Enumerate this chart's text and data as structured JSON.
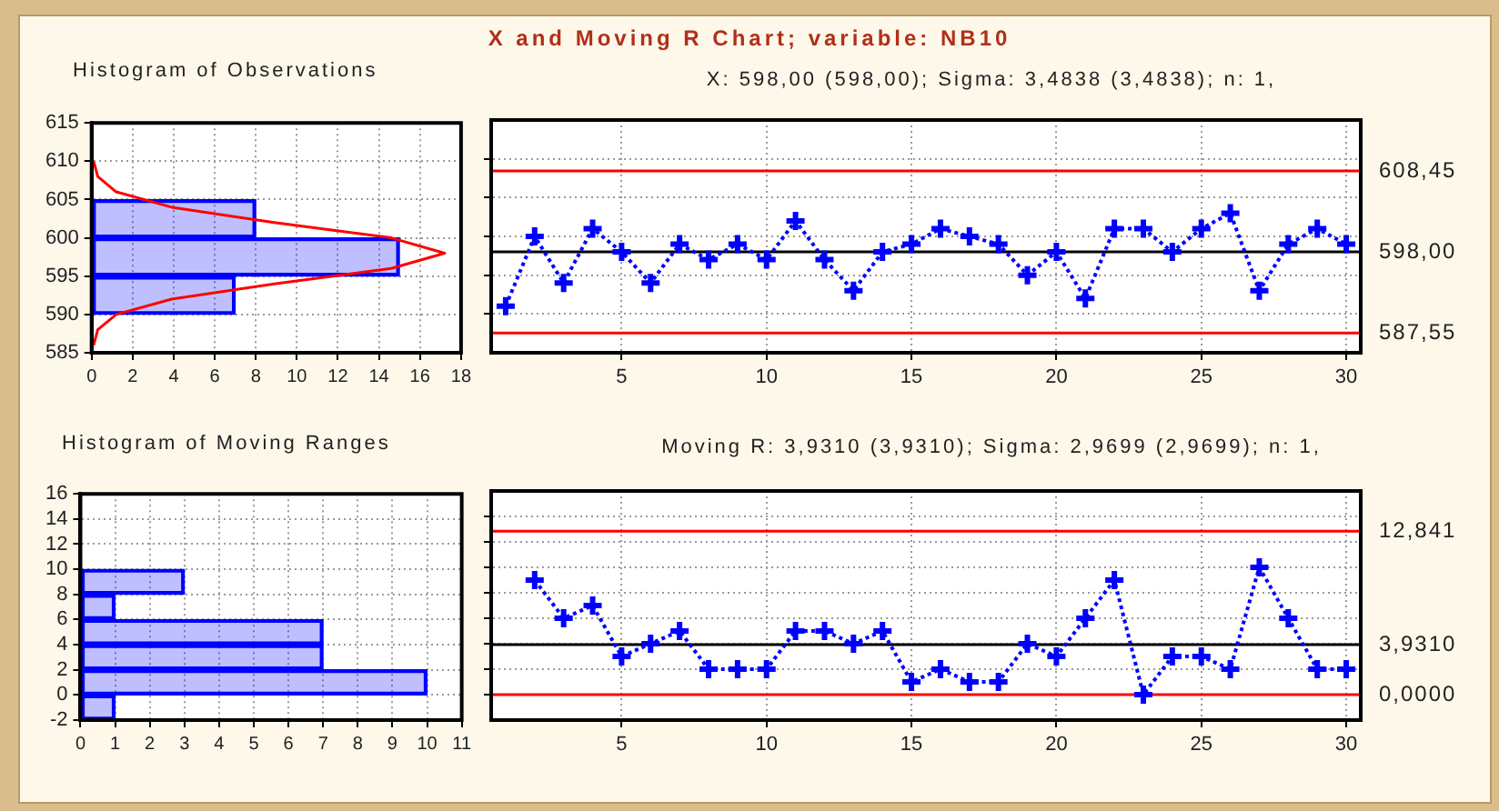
{
  "chart_data": [
    {
      "type": "bar",
      "title": "Histogram of Observations",
      "orientation": "horizontal",
      "x": [
        592.5,
        597.5,
        602.5
      ],
      "values": [
        7,
        15,
        8
      ],
      "color": "#0000ff",
      "series": [
        {
          "type": "line",
          "color": "#ff0000",
          "x": [
            586,
            588,
            590,
            592,
            594,
            596,
            598,
            600,
            602,
            604,
            606,
            608,
            610
          ],
          "values": [
            0.1,
            0.3,
            1.2,
            3.9,
            8.9,
            14.6,
            17.2,
            14.6,
            8.9,
            3.9,
            1.2,
            0.3,
            0.1
          ]
        }
      ],
      "xlim": [
        0,
        18
      ],
      "xticks": [
        0,
        2,
        4,
        6,
        8,
        10,
        12,
        14,
        16,
        18
      ],
      "ylim": [
        585,
        615
      ],
      "yticks": [
        585,
        590,
        595,
        600,
        605,
        610,
        615
      ],
      "grid": true
    },
    {
      "type": "line",
      "title": "X and Moving R Chart; variable:   NB10",
      "subtitle": "X: 598,00 (598,00);  Sigma: 3,4838 (3,4838);  n: 1,",
      "x": [
        1,
        2,
        3,
        4,
        5,
        6,
        7,
        8,
        9,
        10,
        11,
        12,
        13,
        14,
        15,
        16,
        17,
        18,
        19,
        20,
        21,
        22,
        23,
        24,
        25,
        26,
        27,
        28,
        29,
        30
      ],
      "values": [
        591,
        600,
        594,
        601,
        598,
        594,
        599,
        597,
        599,
        597,
        602,
        597,
        593,
        598,
        599,
        601,
        600,
        599,
        595,
        598,
        592,
        601,
        601,
        598,
        601,
        603,
        593,
        599,
        601,
        599
      ],
      "color": "#0000ff",
      "marker": "cross",
      "line_style": "dotted",
      "ref_lines": [
        {
          "axis": "y",
          "value": 608.45,
          "label": "608,45",
          "color": "#ff0000"
        },
        {
          "axis": "y",
          "value": 598,
          "label": "598,00",
          "color": "#000000"
        },
        {
          "axis": "y",
          "value": 587.55,
          "label": "587,55",
          "color": "#ff0000"
        }
      ],
      "xlim": [
        0.5,
        30.5
      ],
      "xticks": [
        5,
        10,
        15,
        20,
        25,
        30
      ],
      "ylim": [
        585,
        615
      ],
      "yticks": [
        {
          "value": 590,
          "label": null
        },
        {
          "value": 595,
          "label": null
        },
        {
          "value": 600,
          "label": null
        },
        {
          "value": 605,
          "label": null
        },
        {
          "value": 610,
          "label": null
        }
      ],
      "tick_labels": "x",
      "grid": true
    },
    {
      "type": "bar",
      "title": "Histogram of Moving Ranges",
      "orientation": "horizontal",
      "x": [
        -1,
        1,
        3,
        5,
        7,
        9
      ],
      "values": [
        1,
        10,
        7,
        7,
        1,
        3
      ],
      "color": "#0000ff",
      "xlim": [
        0,
        11
      ],
      "xticks": [
        0,
        1,
        2,
        3,
        4,
        5,
        6,
        7,
        8,
        9,
        10,
        11
      ],
      "ylim": [
        -2,
        16
      ],
      "yticks": [
        -2,
        0,
        2,
        4,
        6,
        8,
        10,
        12,
        14,
        16
      ],
      "grid": true
    },
    {
      "type": "line",
      "title": "Moving R: 3,9310 (3,9310);  Sigma: 2,9699 (2,9699);  n: 1,",
      "x": [
        2,
        3,
        4,
        5,
        6,
        7,
        8,
        9,
        10,
        11,
        12,
        13,
        14,
        15,
        16,
        17,
        18,
        19,
        20,
        21,
        22,
        23,
        24,
        25,
        26,
        27,
        28,
        29,
        30
      ],
      "values": [
        9,
        6,
        7,
        3,
        4,
        5,
        2,
        2,
        2,
        5,
        5,
        4,
        5,
        1,
        2,
        1,
        1,
        4,
        3,
        6,
        9,
        0,
        3,
        3,
        2,
        10,
        6,
        2,
        2
      ],
      "color": "#0000ff",
      "marker": "cross",
      "line_style": "dotted",
      "ref_lines": [
        {
          "axis": "y",
          "value": 12.841,
          "label": "12,841",
          "color": "#ff0000"
        },
        {
          "axis": "y",
          "value": 3.931,
          "label": "3,9310",
          "color": "#000000"
        },
        {
          "axis": "y",
          "value": 0,
          "label": "0,0000",
          "color": "#ff0000"
        }
      ],
      "xlim": [
        0.5,
        30.5
      ],
      "xticks": [
        5,
        10,
        15,
        20,
        25,
        30
      ],
      "ylim": [
        -2,
        16
      ],
      "yticks": [
        {
          "value": 0,
          "label": null
        },
        {
          "value": 2,
          "label": null
        },
        {
          "value": 4,
          "label": null
        },
        {
          "value": 6,
          "label": null
        },
        {
          "value": 8,
          "label": null
        },
        {
          "value": 10,
          "label": null
        },
        {
          "value": 12,
          "label": null
        },
        {
          "value": 14,
          "label": null
        }
      ],
      "tick_labels": "x",
      "grid": true
    }
  ]
}
